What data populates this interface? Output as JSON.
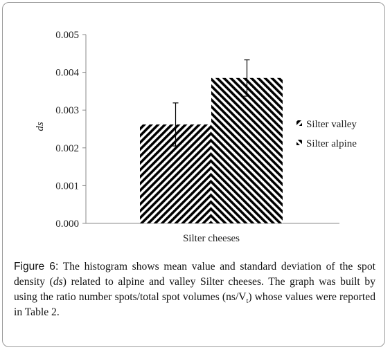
{
  "chart_data": {
    "type": "bar",
    "categories": [
      "Silter cheeses"
    ],
    "xlabel": "Silter cheeses",
    "ylabel": "ds",
    "ylim": [
      0,
      0.005
    ],
    "yticks": [
      "0.000",
      "0.001",
      "0.002",
      "0.003",
      "0.004",
      "0.005"
    ],
    "grid": false,
    "legend_position": "right",
    "series": [
      {
        "name": "Silter valley",
        "values": [
          0.00262
        ],
        "error": [
          0.00057
        ],
        "color": "#000000",
        "hatch": "diagonal-down"
      },
      {
        "name": "Silter alpine",
        "values": [
          0.00385
        ],
        "error": [
          0.00048
        ],
        "color": "#000000",
        "hatch": "diagonal-up"
      }
    ]
  },
  "caption": {
    "label": "Figure 6:",
    "text_1": " The histogram shows mean value and standard deviation of the spot density (",
    "var": "ds",
    "text_2": ") related to alpine and valley Silter cheeses. The graph was built by using the ratio number spots/total spot volumes (ns/V",
    "sub": "t",
    "text_3": ") whose values were reported in Table 2."
  }
}
